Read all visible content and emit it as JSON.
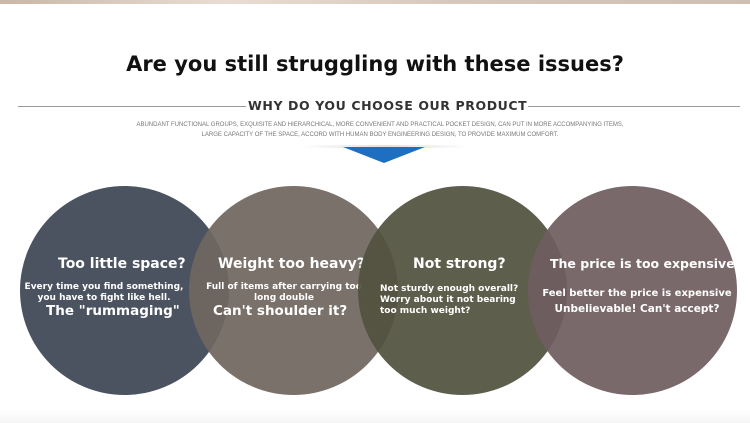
{
  "header": {
    "headline": "Are you still struggling with these issues?",
    "subhead": "WHY DO YOU CHOOSE OUR PRODUCT",
    "description": [
      "ABUNDANT FUNCTIONAL GROUPS, EXQUISITE AND HIERARCHICAL, MORE CONVENIENT AND PRACTICAL POCKET DESIGN, CAN PUT IN MORE ACCOMPANYING ITEMS,",
      "LARGE CAPACITY OF THE SPACE, ACCORD WITH HUMAN BODY ENGINEERING DESIGN, TO PROVIDE MAXIMUM COMFORT."
    ]
  },
  "colors": {
    "pointer": "#1f6fc0",
    "circle_1": "#4b5260",
    "circle_2": "#706660",
    "circle_3": "#525240",
    "circle_4": "#705e60"
  },
  "issues": [
    {
      "question": "Too little space?",
      "detail": "Every time you find something, you have to fight like hell.",
      "conclusion": "The \"rummaging\""
    },
    {
      "question": "Weight too heavy?",
      "detail": "Full of items after carrying too long double",
      "conclusion": "Can't shoulder it?"
    },
    {
      "question": "Not strong?",
      "detail": "Not sturdy enough overall? Worry about it not bearing too much weight?",
      "conclusion": ""
    },
    {
      "question": "The price is too expensive?",
      "detail": "Feel better the price is expensive",
      "conclusion": "Unbelievable! Can't accept?"
    }
  ]
}
